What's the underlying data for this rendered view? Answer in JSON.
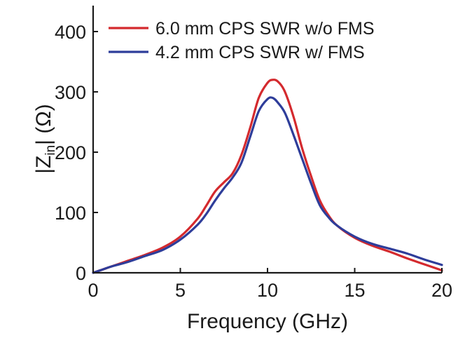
{
  "chart_data": {
    "type": "line",
    "xlabel": "Frequency (GHz)",
    "ylabel": "|Z",
    "ylabel_sub": "in",
    "ylabel_unit": "| (Ω)",
    "xlim": [
      0,
      20
    ],
    "ylim": [
      0,
      450
    ],
    "xticks": [
      0,
      5,
      10,
      15,
      20
    ],
    "yticks": [
      0,
      100,
      200,
      300,
      400
    ],
    "grid": false,
    "legend_position": "top-right",
    "series": [
      {
        "name": "6.0 mm CPS SWR w/o FMS",
        "color": "#d42a2e",
        "x": [
          0,
          0.5,
          1,
          2,
          3,
          4,
          5,
          6,
          6.5,
          7,
          7.5,
          8,
          8.5,
          9,
          9.5,
          10,
          10.3,
          10.6,
          11,
          11.5,
          12,
          12.5,
          13,
          13.5,
          14,
          15,
          16,
          17,
          18,
          19,
          20
        ],
        "y": [
          0,
          5,
          10,
          20,
          30,
          42,
          60,
          90,
          112,
          135,
          150,
          165,
          195,
          240,
          290,
          315,
          320,
          317,
          300,
          258,
          205,
          160,
          120,
          95,
          78,
          58,
          45,
          35,
          24,
          14,
          4
        ]
      },
      {
        "name": "4.2 mm CPS SWR w/ FMS",
        "color": "#2e3d9a",
        "x": [
          0,
          0.5,
          1,
          2,
          3,
          4,
          5,
          6,
          6.5,
          7,
          7.5,
          8,
          8.5,
          9,
          9.5,
          10,
          10.3,
          10.6,
          11,
          11.5,
          12,
          12.5,
          13,
          13.5,
          14,
          15,
          16,
          17,
          18,
          19,
          20
        ],
        "y": [
          0,
          5,
          10,
          18,
          28,
          38,
          55,
          80,
          98,
          120,
          140,
          158,
          182,
          225,
          268,
          288,
          290,
          282,
          265,
          228,
          188,
          148,
          112,
          92,
          78,
          60,
          48,
          40,
          32,
          22,
          13
        ]
      }
    ]
  }
}
